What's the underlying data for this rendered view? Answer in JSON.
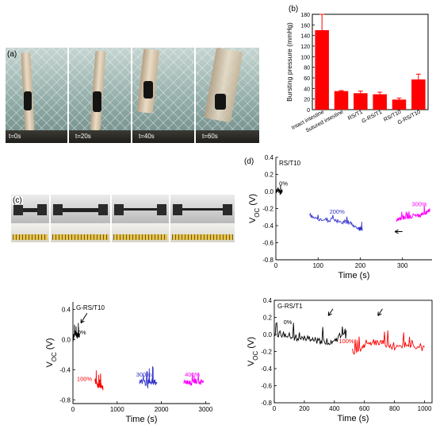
{
  "panels": {
    "a": {
      "label": "(a)",
      "frames": [
        {
          "time": "t=0s"
        },
        {
          "time": "t=20s"
        },
        {
          "time": "t=40s"
        },
        {
          "time": "t=60s"
        }
      ]
    },
    "c": {
      "label": "(c)"
    }
  },
  "chart_data": [
    {
      "id": "b",
      "panel_label": "(b)",
      "type": "bar",
      "ylabel": "Bursting pressure (mmHg)",
      "ylim": [
        0,
        180
      ],
      "yticks": [
        "0",
        "20",
        "40",
        "60",
        "80",
        "100",
        "120",
        "140",
        "160",
        "180"
      ],
      "categories": [
        "Intact intestine",
        "Sutured intestine",
        "RS/T1",
        "G-RS/T1",
        "RS/T10",
        "G-RS/T10"
      ],
      "values": [
        150,
        35,
        31,
        29,
        19,
        57
      ],
      "errors": [
        30,
        1,
        4,
        4,
        3,
        10
      ],
      "color": "#ff0000"
    },
    {
      "id": "d",
      "panel_label": "(d)",
      "type": "line",
      "inset_title": "RS/T10",
      "xlabel": "Time (s)",
      "ylabel": "V",
      "ylabel_sub": "OC",
      "ylabel_unit": " (V)",
      "xlim": [
        0,
        370
      ],
      "ylim": [
        -0.8,
        0.4
      ],
      "xticks": [
        "0",
        "100",
        "200",
        "300"
      ],
      "yticks": [
        "0.4",
        "0.2",
        "0.0",
        "-0.2",
        "-0.4",
        "-0.6",
        "-0.8"
      ],
      "series": [
        {
          "name": "0%",
          "color": "#000000",
          "x": [
            0,
            5,
            10,
            15
          ],
          "y": [
            0.0,
            0.03,
            -0.02,
            0.01
          ]
        },
        {
          "name": "200%",
          "color": "#3333cc",
          "x": [
            80,
            110,
            140,
            170,
            195,
            205
          ],
          "y": [
            -0.3,
            -0.33,
            -0.34,
            -0.36,
            -0.43,
            -0.46
          ]
        },
        {
          "name": "300%",
          "color": "#ff00ff",
          "x": [
            285,
            300,
            320,
            340,
            355,
            365
          ],
          "y": [
            -0.35,
            -0.3,
            -0.3,
            -0.28,
            -0.25,
            -0.22
          ]
        }
      ],
      "annotations": [
        "0%",
        "200%",
        "300%"
      ]
    },
    {
      "id": "e",
      "type": "line",
      "inset_title": "G-RS/T10",
      "xlabel": "Time (s)",
      "ylabel": "V",
      "ylabel_sub": "OC",
      "ylabel_unit": " (V)",
      "xlim": [
        0,
        3100
      ],
      "ylim": [
        -0.85,
        0.5
      ],
      "xticks": [
        "0",
        "1000",
        "2000",
        "3000"
      ],
      "yticks": [
        "0.4",
        "0.0",
        "-0.4",
        "-0.8"
      ],
      "series": [
        {
          "name": "0%",
          "color": "#000000",
          "x": [
            0,
            50,
            100,
            150
          ],
          "y": [
            0.0,
            0.1,
            0.05,
            0.05
          ]
        },
        {
          "name": "100%",
          "color": "#ff0000",
          "x": [
            500,
            560,
            620,
            680
          ],
          "y": [
            -0.55,
            -0.62,
            -0.6,
            -0.65
          ]
        },
        {
          "name": "300%",
          "color": "#3333cc",
          "x": [
            1500,
            1650,
            1800,
            1900
          ],
          "y": [
            -0.55,
            -0.58,
            -0.56,
            -0.58
          ]
        },
        {
          "name": "400%",
          "color": "#ff00ff",
          "x": [
            2500,
            2650,
            2800,
            2950
          ],
          "y": [
            -0.55,
            -0.58,
            -0.55,
            -0.57
          ]
        }
      ],
      "annotations": [
        "0%",
        "100%",
        "300%",
        "400%"
      ]
    },
    {
      "id": "f",
      "type": "line",
      "inset_title": "G-RS/T1",
      "xlabel": "Time (s)",
      "ylabel": "V",
      "ylabel_sub": "OC",
      "ylabel_unit": " (V)",
      "xlim": [
        0,
        1050
      ],
      "ylim": [
        -0.8,
        0.4
      ],
      "xticks": [
        "0",
        "200",
        "400",
        "600",
        "800",
        "1000"
      ],
      "yticks": [
        "0.4",
        "0.2",
        "0.0",
        "-0.2",
        "-0.4",
        "-0.6",
        "-0.8"
      ],
      "series": [
        {
          "name": "0%",
          "color": "#000000",
          "x": [
            0,
            100,
            200,
            300,
            400,
            480
          ],
          "y": [
            0.02,
            -0.02,
            -0.05,
            -0.08,
            -0.08,
            0.05
          ]
        },
        {
          "name": "100%",
          "color": "#ff0000",
          "x": [
            520,
            600,
            700,
            800,
            900,
            1000
          ],
          "y": [
            -0.2,
            -0.15,
            -0.08,
            -0.15,
            -0.12,
            -0.15
          ]
        }
      ],
      "annotations": [
        "0%",
        "100%"
      ]
    }
  ]
}
